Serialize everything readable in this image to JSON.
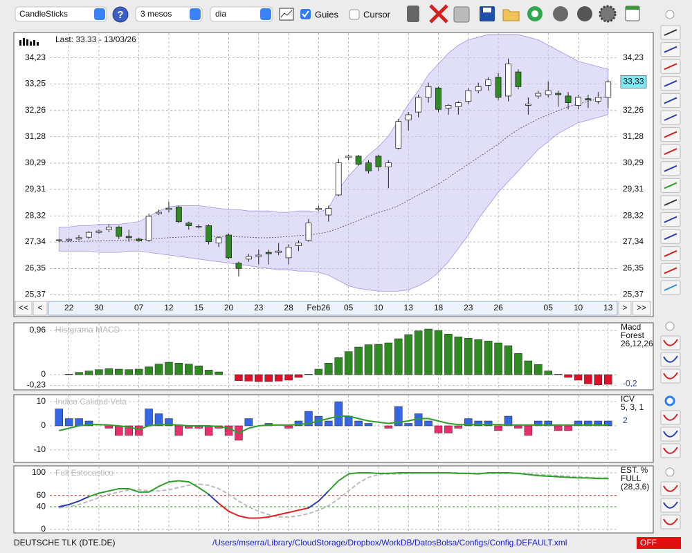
{
  "toolbar": {
    "chart_type": "CandleSticks",
    "help": "?",
    "period": "3 mesos",
    "interval": "dia",
    "guides": "Guies",
    "cursor": "Cursor"
  },
  "navigation": {
    "first": "<<",
    "prev": "<",
    "next": ">",
    "last": ">>"
  },
  "footer": {
    "symbol": "DEUTSCHE TLK (DTE.DE)",
    "config_path": "/Users/mserra/Library/CloudStorage/Dropbox/WorkDB/DatosBolsa/Configs/Config.DEFAULT.xml",
    "status": "OFF"
  },
  "chart_data": [
    {
      "type": "candlestick",
      "header_text": "Last: 33.33 - 13/03/26",
      "categories": [
        null,
        "22",
        null,
        null,
        "30",
        null,
        null,
        null,
        "07",
        null,
        null,
        "12",
        null,
        null,
        "15",
        null,
        null,
        "20",
        null,
        null,
        "23",
        null,
        null,
        "28",
        null,
        null,
        "Feb26",
        null,
        null,
        "05",
        null,
        null,
        "10",
        null,
        null,
        "13",
        null,
        null,
        "18",
        null,
        null,
        "23",
        null,
        null,
        "26",
        null,
        null,
        null,
        null,
        "05",
        null,
        null,
        "10",
        null,
        null,
        "13"
      ],
      "open": [
        27.4,
        27.4,
        27.45,
        27.52,
        27.7,
        27.8,
        27.9,
        27.55,
        27.45,
        27.4,
        28.4,
        28.55,
        28.65,
        28.05,
        27.9,
        27.95,
        27.3,
        27.6,
        26.55,
        26.7,
        26.8,
        26.95,
        26.95,
        26.75,
        27.2,
        27.4,
        28.55,
        28.35,
        29.1,
        30.5,
        30.55,
        30.3,
        30.55,
        30.15,
        30.85,
        31.9,
        32.2,
        32.75,
        33.1,
        32.35,
        32.4,
        32.6,
        33.0,
        33.2,
        33.5,
        32.8,
        33.7,
        32.45,
        32.8,
        32.85,
        32.9,
        32.8,
        32.45,
        32.7,
        32.6,
        32.75
      ],
      "high": [
        27.45,
        27.48,
        27.6,
        27.75,
        27.8,
        28.0,
        27.95,
        27.8,
        27.5,
        28.4,
        28.55,
        28.85,
        28.7,
        28.1,
        28.0,
        28.0,
        27.55,
        27.65,
        26.6,
        26.9,
        27.05,
        27.05,
        27.3,
        27.25,
        27.4,
        28.2,
        28.7,
        28.7,
        30.45,
        30.6,
        30.6,
        30.4,
        30.6,
        30.4,
        31.95,
        32.2,
        32.85,
        33.3,
        33.15,
        32.5,
        32.6,
        33.1,
        33.3,
        33.5,
        33.65,
        34.2,
        33.8,
        32.75,
        33.0,
        33.35,
        33.0,
        32.95,
        32.85,
        32.85,
        32.95,
        33.4
      ],
      "low": [
        27.35,
        27.35,
        27.4,
        27.45,
        27.65,
        27.7,
        27.45,
        27.35,
        27.35,
        27.35,
        28.35,
        28.45,
        28.05,
        27.8,
        27.85,
        27.25,
        27.15,
        26.7,
        26.05,
        26.6,
        26.5,
        26.5,
        26.85,
        26.5,
        27.0,
        27.35,
        28.5,
        28.1,
        29.05,
        30.4,
        30.2,
        29.9,
        30.0,
        29.35,
        30.8,
        31.5,
        32.0,
        32.55,
        32.2,
        32.1,
        32.1,
        32.5,
        32.9,
        33.0,
        32.65,
        32.6,
        33.05,
        32.1,
        32.7,
        32.75,
        32.4,
        32.3,
        32.3,
        32.35,
        32.5,
        32.35
      ],
      "close": [
        27.42,
        27.44,
        27.5,
        27.7,
        27.75,
        27.9,
        27.55,
        27.5,
        27.38,
        28.3,
        28.45,
        28.6,
        28.1,
        27.95,
        27.92,
        27.35,
        27.5,
        26.75,
        26.35,
        26.8,
        26.85,
        26.9,
        27.0,
        27.15,
        27.3,
        28.05,
        28.6,
        28.6,
        30.3,
        30.55,
        30.25,
        30.0,
        30.15,
        30.3,
        31.85,
        32.1,
        32.75,
        33.15,
        32.3,
        32.45,
        32.55,
        33.0,
        33.15,
        33.4,
        32.75,
        34.0,
        33.15,
        32.5,
        32.9,
        33.0,
        32.85,
        32.55,
        32.75,
        32.65,
        32.75,
        33.33
      ],
      "upper_band": [
        27.9,
        27.9,
        27.95,
        27.95,
        28.0,
        28.0,
        28.0,
        28.05,
        28.1,
        28.3,
        28.5,
        28.65,
        28.7,
        28.7,
        28.7,
        28.65,
        28.6,
        28.55,
        28.55,
        28.5,
        28.5,
        28.5,
        28.45,
        28.45,
        28.5,
        28.5,
        28.45,
        28.6,
        29.3,
        29.8,
        30.2,
        30.6,
        30.9,
        31.3,
        31.9,
        32.5,
        33.0,
        33.6,
        34.0,
        34.4,
        34.7,
        34.9,
        35.0,
        35.1,
        35.1,
        35.1,
        35.1,
        35.0,
        34.9,
        34.7,
        34.5,
        34.3,
        34.1,
        34.0,
        33.9,
        33.8
      ],
      "lower_band": [
        27.0,
        27.0,
        27.0,
        27.0,
        26.95,
        26.95,
        26.95,
        27.0,
        27.0,
        26.95,
        26.9,
        26.85,
        26.8,
        26.75,
        26.7,
        26.65,
        26.6,
        26.55,
        26.5,
        26.45,
        26.4,
        26.35,
        26.3,
        26.3,
        26.25,
        26.25,
        26.2,
        26.1,
        25.9,
        25.7,
        25.6,
        25.55,
        25.5,
        25.5,
        25.5,
        25.55,
        25.7,
        25.9,
        26.2,
        26.6,
        27.1,
        27.6,
        28.2,
        28.7,
        29.2,
        29.6,
        30.0,
        30.4,
        30.8,
        31.1,
        31.4,
        31.6,
        31.8,
        31.9,
        32.0,
        32.1
      ],
      "average": [
        27.35,
        27.35,
        27.36,
        27.37,
        27.38,
        27.4,
        27.4,
        27.42,
        27.42,
        27.45,
        27.48,
        27.5,
        27.52,
        27.53,
        27.55,
        27.55,
        27.55,
        27.55,
        27.53,
        27.52,
        27.5,
        27.5,
        27.52,
        27.55,
        27.58,
        27.6,
        27.65,
        27.72,
        27.85,
        28.0,
        28.15,
        28.3,
        28.45,
        28.55,
        28.7,
        28.9,
        29.1,
        29.3,
        29.5,
        29.75,
        30.0,
        30.25,
        30.5,
        30.75,
        31.0,
        31.3,
        31.55,
        31.75,
        31.95,
        32.1,
        32.25,
        32.4,
        32.5,
        32.6,
        32.7,
        32.8
      ],
      "band_color": "#c9c2f2",
      "average_color": "#555",
      "up_color": "#ffffff",
      "down_color": "#2e8b22",
      "ylim": [
        25.17,
        35.15
      ],
      "yticks": [
        {
          "value": 25.37,
          "label": "25,37"
        },
        {
          "value": 26.35,
          "label": "26,35"
        },
        {
          "value": 27.34,
          "label": "27,34"
        },
        {
          "value": 28.32,
          "label": "28,32"
        },
        {
          "value": 29.31,
          "label": "29,31"
        },
        {
          "value": 30.29,
          "label": "30,29"
        },
        {
          "value": 31.28,
          "label": "31,28"
        },
        {
          "value": 32.26,
          "label": "32,26"
        },
        {
          "value": 33.25,
          "label": "33,25"
        },
        {
          "value": 34.23,
          "label": "34,23"
        }
      ],
      "right_ticks": true,
      "grid": true,
      "last_value": {
        "value": 33.33,
        "label": "33,33"
      }
    },
    {
      "type": "histogram",
      "title": "Histgrama MACD",
      "side_labels": [
        "Macd",
        "Forest",
        "26,12,26"
      ],
      "values": [
        0,
        0.01,
        0.05,
        0.08,
        0.11,
        0.13,
        0.12,
        0.11,
        0.12,
        0.17,
        0.23,
        0.27,
        0.25,
        0.23,
        0.19,
        0.1,
        0.06,
        0,
        -0.13,
        -0.14,
        -0.15,
        -0.15,
        -0.14,
        -0.12,
        -0.06,
        0.01,
        0.12,
        0.25,
        0.37,
        0.5,
        0.6,
        0.65,
        0.66,
        0.69,
        0.78,
        0.87,
        0.95,
        0.99,
        0.96,
        0.88,
        0.82,
        0.79,
        0.76,
        0.73,
        0.69,
        0.63,
        0.46,
        0.3,
        0.22,
        0.08,
        0.01,
        -0.06,
        -0.12,
        -0.2,
        -0.22,
        -0.21
      ],
      "positive_color": "#2e8b22",
      "negative_color": "#e0102a",
      "ylim": [
        -0.3,
        1.11
      ],
      "yticks": [
        {
          "value": -0.23,
          "label": "-0,23"
        },
        0,
        {
          "value": 0.96,
          "label": "0,96"
        }
      ],
      "grid": true,
      "last_value": {
        "value": -0.2,
        "label": "-0,2"
      }
    },
    {
      "type": "histogram",
      "title": "Indice Calidad Vela",
      "side_labels": [
        "ICV",
        "5, 3, 1"
      ],
      "values": [
        7,
        3,
        3,
        2,
        0,
        -1,
        -4,
        -4,
        -4,
        7,
        5,
        3,
        -4,
        -1,
        -1,
        -4,
        -1,
        -4,
        -6,
        3,
        0,
        1,
        0,
        -1,
        2,
        6,
        4,
        2,
        10,
        4,
        2,
        1,
        0,
        -1,
        8,
        1,
        5,
        2,
        -3,
        -3,
        -1,
        3,
        2,
        2,
        -2,
        4,
        -1,
        -4,
        2,
        2,
        -2,
        -2,
        2,
        2,
        2,
        2
      ],
      "line_values": [
        -2,
        -1,
        0,
        0.5,
        0.5,
        0.3,
        0,
        -0.5,
        -1.5,
        0,
        0.5,
        0.5,
        0.3,
        0,
        0,
        0,
        -0.3,
        -1,
        -3,
        -1,
        0,
        0.3,
        0.3,
        0.3,
        0.5,
        1,
        2,
        3,
        4,
        4,
        3,
        2,
        1.5,
        1,
        1.5,
        2,
        3,
        3,
        2,
        1,
        0.5,
        0.5,
        0.5,
        0.5,
        0.5,
        0.3,
        0.3,
        0.3,
        0.3,
        0.3,
        0.3,
        0.3,
        0.3,
        0.3,
        0.3,
        0.3
      ],
      "line_color": "#2aa02a",
      "positive_color": "#3566e6",
      "negative_color": "#e8306e",
      "ylim": [
        -14.9,
        12.6
      ],
      "yticks": [
        -10,
        0,
        10
      ],
      "grid": true,
      "last_value": 2
    },
    {
      "type": "line",
      "title": "Full Estocastico",
      "side_labels": [
        "EST. %",
        "FULL",
        "(28,3,6)"
      ],
      "values": [
        40,
        44,
        50,
        58,
        64,
        68,
        72,
        72,
        66,
        66,
        76,
        84,
        86,
        84,
        74,
        62,
        46,
        32,
        24,
        20,
        20,
        22,
        26,
        30,
        34,
        38,
        50,
        68,
        86,
        98,
        100,
        100,
        99,
        99,
        100,
        100,
        100,
        100,
        100,
        100,
        99,
        99,
        98,
        100,
        100,
        100,
        99,
        97,
        95,
        94,
        93,
        92,
        91,
        91,
        90,
        90
      ],
      "signal": [
        38,
        40,
        44,
        50,
        56,
        62,
        66,
        70,
        70,
        68,
        68,
        70,
        74,
        78,
        80,
        78,
        72,
        62,
        50,
        40,
        32,
        26,
        22,
        22,
        24,
        28,
        34,
        42,
        54,
        68,
        82,
        92,
        97,
        98,
        98,
        99,
        100,
        100,
        100,
        100,
        100,
        99,
        99,
        99,
        99,
        99,
        99,
        98,
        97,
        96,
        95,
        94,
        93,
        92,
        91,
        91
      ],
      "signal_color": "#bbbbbb",
      "levels": [
        {
          "value": 60,
          "color": "#c0392b"
        },
        {
          "value": 40,
          "color": "#2e8b22"
        }
      ],
      "zone_colors": [
        "#2aa02a",
        "#2b3fae",
        "#e02020"
      ],
      "ylim": [
        -5,
        111
      ],
      "yticks": [
        0,
        40,
        60,
        100
      ],
      "grid": true
    }
  ]
}
